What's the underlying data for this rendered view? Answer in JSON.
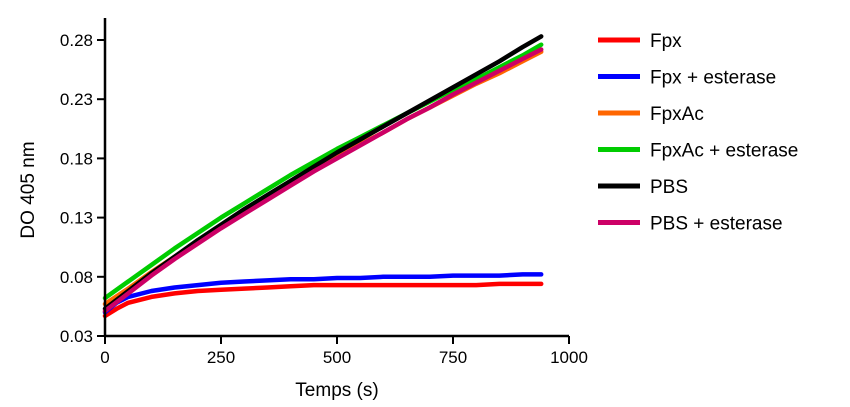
{
  "chart_data": {
    "type": "line",
    "xlabel": "Temps (s)",
    "ylabel": "DO 405 nm",
    "xlim": [
      0,
      1000
    ],
    "ylim": [
      0.03,
      0.3
    ],
    "x_ticks": [
      0,
      250,
      500,
      750,
      1000
    ],
    "y_ticks": [
      0.03,
      0.08,
      0.13,
      0.18,
      0.23,
      0.28
    ],
    "x_tick_labels": [
      "0",
      "250",
      "500",
      "750",
      "1000"
    ],
    "y_tick_labels": [
      "0.03",
      "0.08",
      "0.13",
      "0.18",
      "0.23",
      "0.28"
    ],
    "legend_position": "right",
    "grid": false,
    "series": [
      {
        "name": "Fpx",
        "color": "#ff0000",
        "x": [
          0,
          25,
          50,
          100,
          150,
          200,
          250,
          300,
          350,
          400,
          450,
          500,
          550,
          600,
          650,
          700,
          750,
          800,
          850,
          900,
          940
        ],
        "y": [
          0.047,
          0.053,
          0.058,
          0.063,
          0.066,
          0.068,
          0.069,
          0.07,
          0.071,
          0.072,
          0.073,
          0.073,
          0.073,
          0.073,
          0.073,
          0.073,
          0.073,
          0.073,
          0.074,
          0.074,
          0.074
        ]
      },
      {
        "name": "Fpx + esterase",
        "color": "#0000ff",
        "x": [
          0,
          25,
          50,
          100,
          150,
          200,
          250,
          300,
          350,
          400,
          450,
          500,
          550,
          600,
          650,
          700,
          750,
          800,
          850,
          900,
          940
        ],
        "y": [
          0.05,
          0.058,
          0.063,
          0.068,
          0.071,
          0.073,
          0.075,
          0.076,
          0.077,
          0.078,
          0.078,
          0.079,
          0.079,
          0.08,
          0.08,
          0.08,
          0.081,
          0.081,
          0.081,
          0.082,
          0.082
        ]
      },
      {
        "name": "FpxAc",
        "color": "#ff6600",
        "x": [
          0,
          50,
          100,
          150,
          200,
          250,
          300,
          350,
          400,
          450,
          500,
          550,
          600,
          650,
          700,
          750,
          800,
          850,
          900,
          940
        ],
        "y": [
          0.057,
          0.07,
          0.084,
          0.097,
          0.11,
          0.123,
          0.135,
          0.147,
          0.159,
          0.17,
          0.181,
          0.192,
          0.202,
          0.213,
          0.223,
          0.233,
          0.243,
          0.252,
          0.262,
          0.27
        ]
      },
      {
        "name": "FpxAc + esterase",
        "color": "#00cc00",
        "x": [
          0,
          50,
          100,
          150,
          200,
          250,
          300,
          350,
          400,
          450,
          500,
          550,
          600,
          650,
          700,
          750,
          800,
          850,
          900,
          940
        ],
        "y": [
          0.062,
          0.076,
          0.09,
          0.104,
          0.117,
          0.13,
          0.142,
          0.154,
          0.166,
          0.177,
          0.188,
          0.198,
          0.208,
          0.218,
          0.228,
          0.238,
          0.247,
          0.257,
          0.267,
          0.276
        ]
      },
      {
        "name": "PBS",
        "color": "#000000",
        "x": [
          0,
          50,
          100,
          150,
          200,
          250,
          300,
          350,
          400,
          450,
          500,
          550,
          600,
          650,
          700,
          750,
          800,
          850,
          900,
          940
        ],
        "y": [
          0.053,
          0.068,
          0.083,
          0.097,
          0.111,
          0.124,
          0.137,
          0.149,
          0.161,
          0.173,
          0.185,
          0.196,
          0.207,
          0.218,
          0.229,
          0.24,
          0.251,
          0.262,
          0.274,
          0.283
        ]
      },
      {
        "name": "PBS + esterase",
        "color": "#cc0066",
        "x": [
          0,
          50,
          100,
          150,
          200,
          250,
          300,
          350,
          400,
          450,
          500,
          550,
          600,
          650,
          700,
          750,
          800,
          850,
          900,
          940
        ],
        "y": [
          0.051,
          0.066,
          0.081,
          0.095,
          0.108,
          0.121,
          0.133,
          0.145,
          0.157,
          0.169,
          0.18,
          0.191,
          0.202,
          0.213,
          0.223,
          0.234,
          0.244,
          0.254,
          0.264,
          0.272
        ]
      }
    ]
  }
}
